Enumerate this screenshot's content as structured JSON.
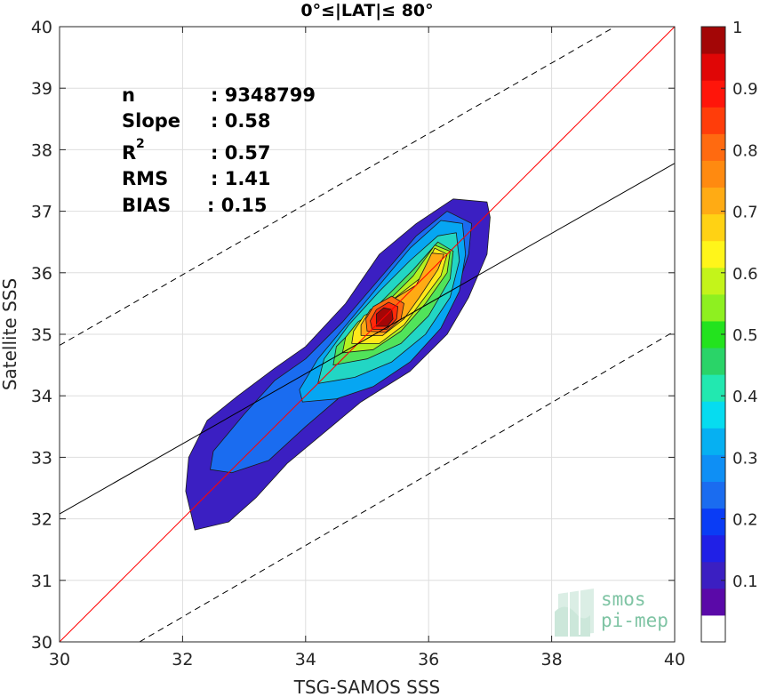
{
  "chart_data": {
    "type": "contour",
    "title": "0°≤|LAT|≤ 80°",
    "xlabel": "TSG-SAMOS SSS",
    "ylabel": "Satellite SSS",
    "xlim": [
      30,
      40
    ],
    "ylim": [
      30,
      40
    ],
    "x_ticks": [
      "30",
      "32",
      "34",
      "36",
      "38",
      "40"
    ],
    "y_ticks": [
      "30",
      "31",
      "32",
      "33",
      "34",
      "35",
      "36",
      "37",
      "38",
      "39",
      "40"
    ],
    "grid": true,
    "stats": [
      {
        "key": "n",
        "value": ": 9348799"
      },
      {
        "key": "Slope",
        "value": ": 0.58"
      },
      {
        "key": "R",
        "sup": "2",
        "value": ": 0.57"
      },
      {
        "key": "RMS",
        "value": ": 1.41"
      },
      {
        "key": "BIAS",
        "value": ": 0.15"
      }
    ],
    "lines": {
      "identity": {
        "x": [
          30,
          40
        ],
        "y": [
          30,
          40
        ],
        "color": "#ff0000"
      },
      "regression": {
        "x": [
          30,
          40
        ],
        "y": [
          32.08,
          37.78
        ],
        "color": "#000000"
      },
      "upper_bound": {
        "x": [
          30,
          39.03
        ],
        "y": [
          34.82,
          40
        ],
        "color": "#000000",
        "dash": true
      },
      "lower_bound": {
        "x": [
          31.3,
          40
        ],
        "y": [
          30,
          35.05
        ],
        "color": "#000000",
        "dash": true
      }
    },
    "density_peak": {
      "x": 35.25,
      "y": 35.2
    },
    "levels": [
      {
        "level": 0.05,
        "color": "#3b1fc2",
        "polygon": [
          [
            32.05,
            32.45
          ],
          [
            32.2,
            31.82
          ],
          [
            32.75,
            31.95
          ],
          [
            33.2,
            32.35
          ],
          [
            33.7,
            32.9
          ],
          [
            34.3,
            33.4
          ],
          [
            34.9,
            33.9
          ],
          [
            35.7,
            34.4
          ],
          [
            36.3,
            35.0
          ],
          [
            36.65,
            35.6
          ],
          [
            36.95,
            36.3
          ],
          [
            37.0,
            36.9
          ],
          [
            36.95,
            37.15
          ],
          [
            36.4,
            37.2
          ],
          [
            35.8,
            36.8
          ],
          [
            35.2,
            36.3
          ],
          [
            34.65,
            35.5
          ],
          [
            34.0,
            34.8
          ],
          [
            33.5,
            34.45
          ],
          [
            32.9,
            34.0
          ],
          [
            32.4,
            33.6
          ],
          [
            32.1,
            33.0
          ]
        ]
      },
      {
        "level": 0.15,
        "color": "#1a6cf0",
        "polygon": [
          [
            32.45,
            32.8
          ],
          [
            32.8,
            32.75
          ],
          [
            33.4,
            32.95
          ],
          [
            34.0,
            33.5
          ],
          [
            34.7,
            34.1
          ],
          [
            35.5,
            34.6
          ],
          [
            36.1,
            35.1
          ],
          [
            36.45,
            35.7
          ],
          [
            36.65,
            36.3
          ],
          [
            36.7,
            36.8
          ],
          [
            36.3,
            37.0
          ],
          [
            35.8,
            36.6
          ],
          [
            35.2,
            35.9
          ],
          [
            34.6,
            35.2
          ],
          [
            34.0,
            34.6
          ],
          [
            33.5,
            34.25
          ],
          [
            33.0,
            33.7
          ],
          [
            32.5,
            33.1
          ]
        ]
      },
      {
        "level": 0.25,
        "color": "#06a6f2",
        "polygon": [
          [
            33.95,
            33.9
          ],
          [
            34.5,
            33.95
          ],
          [
            35.1,
            34.15
          ],
          [
            35.7,
            34.55
          ],
          [
            36.2,
            35.1
          ],
          [
            36.5,
            35.7
          ],
          [
            36.6,
            36.3
          ],
          [
            36.55,
            36.8
          ],
          [
            36.2,
            36.85
          ],
          [
            35.7,
            36.4
          ],
          [
            35.2,
            35.8
          ],
          [
            34.7,
            35.2
          ],
          [
            34.2,
            34.6
          ],
          [
            33.9,
            34.1
          ]
        ]
      },
      {
        "level": 0.35,
        "color": "#22d6c4",
        "polygon": [
          [
            34.2,
            34.2
          ],
          [
            34.8,
            34.3
          ],
          [
            35.4,
            34.55
          ],
          [
            35.95,
            35.0
          ],
          [
            36.35,
            35.6
          ],
          [
            36.5,
            36.2
          ],
          [
            36.45,
            36.65
          ],
          [
            36.15,
            36.6
          ],
          [
            35.7,
            36.2
          ],
          [
            35.2,
            35.7
          ],
          [
            34.7,
            35.15
          ],
          [
            34.3,
            34.6
          ]
        ]
      },
      {
        "level": 0.45,
        "color": "#51e35a",
        "polygon": [
          [
            34.45,
            34.5
          ],
          [
            35.0,
            34.6
          ],
          [
            35.55,
            34.85
          ],
          [
            36.0,
            35.3
          ],
          [
            36.35,
            35.9
          ],
          [
            36.4,
            36.35
          ],
          [
            36.15,
            36.5
          ],
          [
            35.75,
            36.05
          ],
          [
            35.3,
            35.6
          ],
          [
            34.8,
            35.1
          ],
          [
            34.5,
            34.8
          ]
        ]
      },
      {
        "level": 0.55,
        "color": "#b5f020",
        "polygon": [
          [
            34.6,
            34.7
          ],
          [
            35.1,
            34.75
          ],
          [
            35.55,
            35.05
          ],
          [
            35.95,
            35.5
          ],
          [
            36.3,
            36.0
          ],
          [
            36.35,
            36.35
          ],
          [
            36.1,
            36.45
          ],
          [
            35.75,
            35.95
          ],
          [
            35.3,
            35.5
          ],
          [
            34.85,
            35.2
          ],
          [
            34.65,
            34.95
          ]
        ]
      },
      {
        "level": 0.65,
        "color": "#ffe81a",
        "polygon": [
          [
            34.75,
            34.85
          ],
          [
            35.2,
            34.85
          ],
          [
            35.6,
            35.15
          ],
          [
            35.9,
            35.55
          ],
          [
            36.2,
            35.95
          ],
          [
            36.3,
            36.3
          ],
          [
            36.1,
            36.4
          ],
          [
            35.85,
            35.9
          ],
          [
            35.4,
            35.55
          ],
          [
            34.95,
            35.3
          ],
          [
            34.78,
            35.05
          ]
        ]
      },
      {
        "level": 0.72,
        "color": "#ffab14",
        "polygon": [
          [
            34.9,
            34.98
          ],
          [
            35.25,
            34.98
          ],
          [
            35.6,
            35.25
          ],
          [
            35.85,
            35.6
          ],
          [
            36.15,
            36.05
          ],
          [
            36.25,
            36.3
          ],
          [
            36.05,
            36.32
          ],
          [
            35.8,
            35.8
          ],
          [
            35.4,
            35.55
          ],
          [
            35.05,
            35.4
          ],
          [
            34.9,
            35.15
          ]
        ]
      },
      {
        "level": 0.8,
        "color": "#ff6a10",
        "polygon": [
          [
            35.0,
            35.05
          ],
          [
            35.3,
            35.03
          ],
          [
            35.55,
            35.25
          ],
          [
            35.6,
            35.5
          ],
          [
            35.4,
            35.62
          ],
          [
            35.1,
            35.45
          ],
          [
            34.98,
            35.25
          ]
        ]
      },
      {
        "level": 0.88,
        "color": "#ff2a0a",
        "polygon": [
          [
            35.08,
            35.08
          ],
          [
            35.32,
            35.08
          ],
          [
            35.48,
            35.25
          ],
          [
            35.5,
            35.45
          ],
          [
            35.35,
            35.52
          ],
          [
            35.15,
            35.4
          ],
          [
            35.05,
            35.22
          ]
        ]
      },
      {
        "level": 0.96,
        "color": "#a30606",
        "polygon": [
          [
            35.15,
            35.13
          ],
          [
            35.33,
            35.13
          ],
          [
            35.42,
            35.25
          ],
          [
            35.4,
            35.4
          ],
          [
            35.27,
            35.43
          ],
          [
            35.15,
            35.33
          ]
        ]
      }
    ],
    "colorbar": {
      "ticks": [
        "0.1",
        "0.2",
        "0.3",
        "0.4",
        "0.5",
        "0.6",
        "0.7",
        "0.8",
        "0.9",
        "1"
      ],
      "colors": [
        "#ffffff",
        "#5a09a8",
        "#3b1fc2",
        "#2020e6",
        "#0a3cf5",
        "#1a6cf0",
        "#0e8ff5",
        "#06b0f2",
        "#06dcf0",
        "#22e8b0",
        "#2ad468",
        "#23e31e",
        "#8ef020",
        "#c4f41a",
        "#fff51a",
        "#ffd214",
        "#ffab14",
        "#ff8a10",
        "#ff6a10",
        "#ff3d0a",
        "#ff150a",
        "#e00606",
        "#a30606"
      ]
    },
    "watermark": {
      "line1": "smos",
      "line2": "pi-mep"
    }
  }
}
